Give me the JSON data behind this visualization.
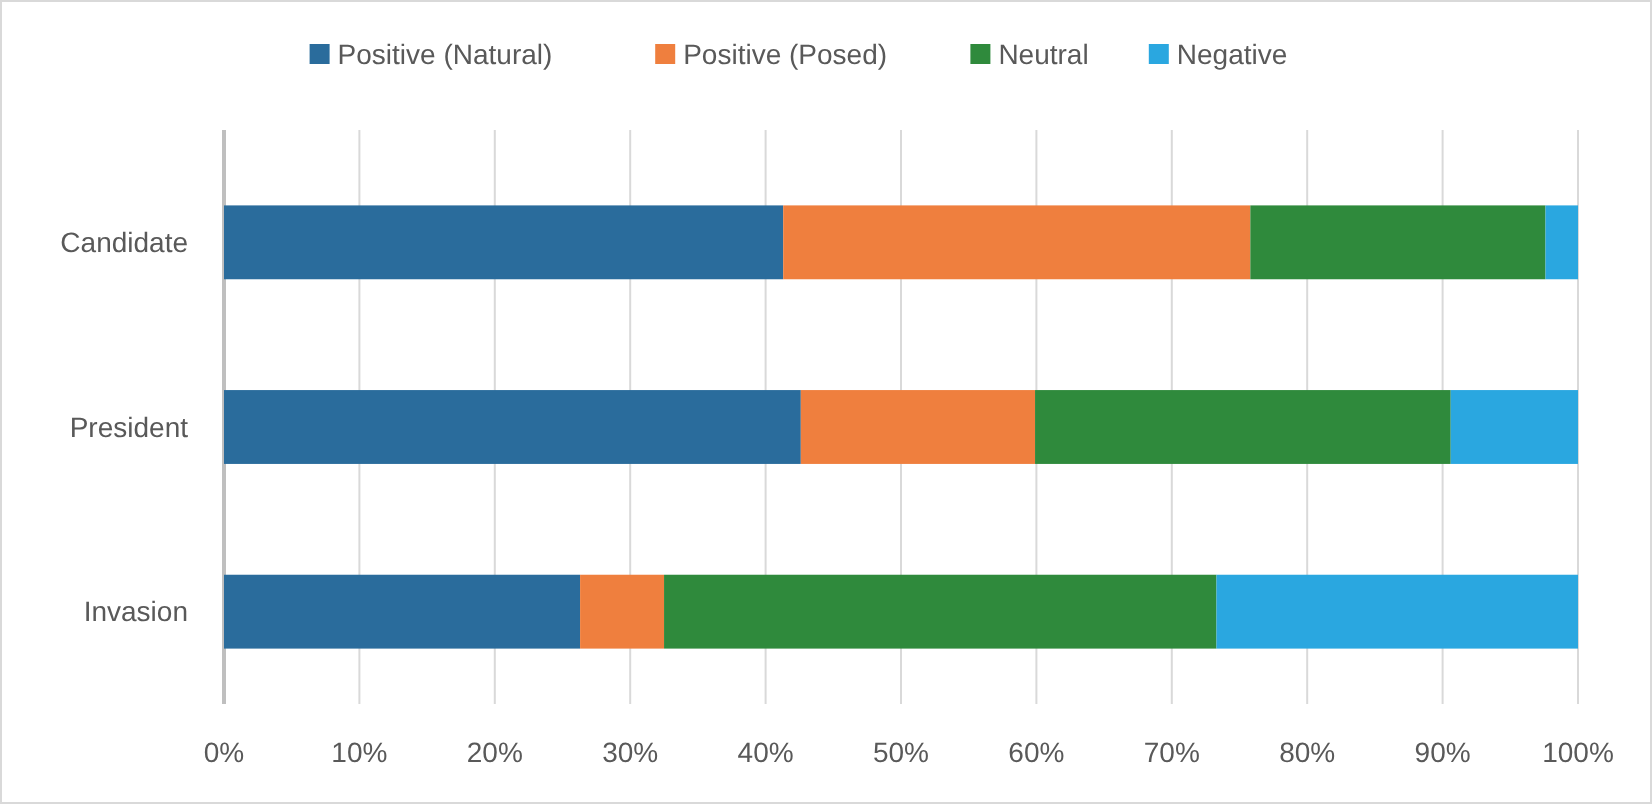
{
  "chart_data": {
    "type": "bar",
    "orientation": "horizontal",
    "stacked": true,
    "categories": [
      "Candidate",
      "President",
      "Invasion"
    ],
    "series": [
      {
        "name": "Positive (Natural)",
        "color": "#2a6c9c",
        "values": [
          41.3,
          42.6,
          26.3
        ]
      },
      {
        "name": "Positive (Posed)",
        "color": "#ef7f3e",
        "values": [
          34.5,
          17.3,
          6.2
        ]
      },
      {
        "name": "Neutral",
        "color": "#2f8a3c",
        "values": [
          21.8,
          30.7,
          40.8
        ]
      },
      {
        "name": "Negative",
        "color": "#2aa7e0",
        "values": [
          2.4,
          9.4,
          26.7
        ]
      }
    ],
    "xlim": [
      0,
      100
    ],
    "xticks": [
      {
        "value": 0,
        "label": "0%"
      },
      {
        "value": 10,
        "label": "10%"
      },
      {
        "value": 20,
        "label": "20%"
      },
      {
        "value": 30,
        "label": "30%"
      },
      {
        "value": 40,
        "label": "40%"
      },
      {
        "value": 50,
        "label": "50%"
      },
      {
        "value": 60,
        "label": "60%"
      },
      {
        "value": 70,
        "label": "70%"
      },
      {
        "value": 80,
        "label": "80%"
      },
      {
        "value": 90,
        "label": "90%"
      },
      {
        "value": 100,
        "label": "100%"
      }
    ],
    "grid": "x",
    "legend": "top"
  }
}
